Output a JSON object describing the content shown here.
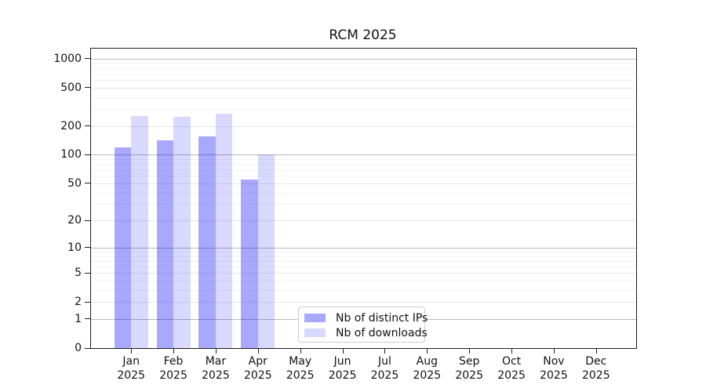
{
  "chart_data": {
    "type": "bar",
    "title": "RCM 2025",
    "categories": [
      "Jan",
      "Feb",
      "Mar",
      "Apr",
      "May",
      "Jun",
      "Jul",
      "Aug",
      "Sep",
      "Oct",
      "Nov",
      "Dec"
    ],
    "category_year": "2025",
    "series": [
      {
        "name": "Nb of distinct IPs",
        "color": "rgba(0,0,255,0.34)",
        "values": [
          119,
          142,
          154,
          55,
          0,
          0,
          0,
          0,
          0,
          0,
          0,
          0
        ]
      },
      {
        "name": "Nb of downloads",
        "color": "rgba(0,0,255,0.15)",
        "values": [
          254,
          247,
          266,
          100,
          0,
          0,
          0,
          0,
          0,
          0,
          0,
          0
        ]
      }
    ],
    "yscale": "log1p",
    "y_ticks": [
      0,
      1,
      2,
      5,
      10,
      20,
      50,
      100,
      200,
      500,
      1000
    ],
    "y_minor_gridlines": [
      3,
      4,
      6,
      7,
      8,
      9,
      30,
      40,
      60,
      70,
      80,
      90,
      300,
      400,
      600,
      700,
      800,
      900
    ],
    "y_strong_gridlines": [
      1,
      10,
      100,
      1000
    ],
    "ylim": [
      0,
      1270
    ],
    "xlabel": "",
    "ylabel": "",
    "grid": "horizontal",
    "legend_position": "lower center"
  }
}
